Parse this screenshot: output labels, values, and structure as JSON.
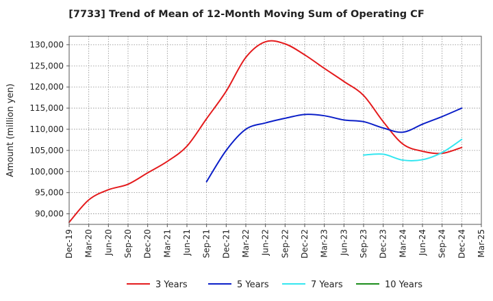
{
  "chart_data": {
    "type": "line",
    "title": "[7733]  Trend of Mean of 12-Month Moving Sum of Operating CF",
    "xlabel": "",
    "ylabel": "Amount (million yen)",
    "ylim": [
      87500,
      132000
    ],
    "yticks": [
      90000,
      95000,
      100000,
      105000,
      110000,
      115000,
      120000,
      125000,
      130000
    ],
    "ytick_labels": [
      "90,000",
      "95,000",
      "100,000",
      "105,000",
      "110,000",
      "115,000",
      "120,000",
      "125,000",
      "130,000"
    ],
    "categories": [
      "Dec-19",
      "Mar-20",
      "Jun-20",
      "Sep-20",
      "Dec-20",
      "Mar-21",
      "Jun-21",
      "Sep-21",
      "Dec-21",
      "Mar-22",
      "Jun-22",
      "Sep-22",
      "Dec-22",
      "Mar-23",
      "Jun-23",
      "Sep-23",
      "Dec-23",
      "Mar-24",
      "Jun-24",
      "Sep-24",
      "Dec-24",
      "Mar-25"
    ],
    "grid": true,
    "legend_position": "bottom",
    "series": [
      {
        "name": "3 Years",
        "color": "#e41a1c",
        "values": [
          88000,
          93300,
          95700,
          97000,
          99700,
          102400,
          106000,
          112500,
          119000,
          127000,
          130700,
          130200,
          127600,
          124400,
          121300,
          118000,
          111800,
          106500,
          104800,
          104300,
          105700,
          null
        ]
      },
      {
        "name": "5 Years",
        "color": "#0a1ec8",
        "values": [
          null,
          null,
          null,
          null,
          null,
          null,
          null,
          97600,
          105000,
          110000,
          111500,
          112600,
          113500,
          113200,
          112200,
          111800,
          110300,
          109300,
          111200,
          113000,
          115000,
          null
        ]
      },
      {
        "name": "7 Years",
        "color": "#33e6f0",
        "values": [
          null,
          null,
          null,
          null,
          null,
          null,
          null,
          null,
          null,
          null,
          null,
          null,
          null,
          null,
          null,
          103900,
          104100,
          102700,
          102800,
          104500,
          107600,
          null
        ]
      },
      {
        "name": "10 Years",
        "color": "#1a8c1a",
        "values": [
          null,
          null,
          null,
          null,
          null,
          null,
          null,
          null,
          null,
          null,
          null,
          null,
          null,
          null,
          null,
          null,
          null,
          null,
          null,
          null,
          null,
          null
        ]
      }
    ]
  }
}
